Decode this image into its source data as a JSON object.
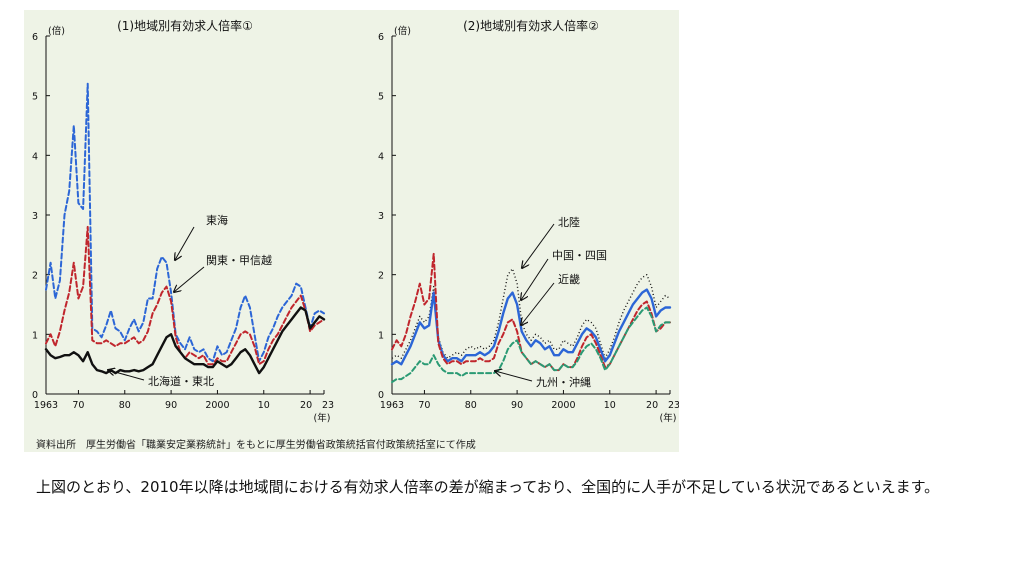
{
  "figure": {
    "source_note": "資料出所　厚生労働省「職業安定業務統計」をもとに厚生労働省政策統括官付政策統括室にて作成"
  },
  "caption": "上図のとおり、2010年以降は地域間における有効求人倍率の差が縮まっており、全国的に人手が不足している状況であるといえます。",
  "chart_data": [
    {
      "type": "line",
      "title": "(1)地域別有効求人倍率①",
      "y_unit": "(倍)",
      "x_unit": "(年)",
      "xlim": [
        1963,
        2023
      ],
      "ylim": [
        0,
        6
      ],
      "x_ticks": [
        "1963",
        "70",
        "80",
        "90",
        "2000",
        "10",
        "20",
        "23"
      ],
      "y_ticks": [
        "0",
        "1",
        "2",
        "3",
        "4",
        "5",
        "6"
      ],
      "grid": false,
      "series": [
        {
          "name": "東海",
          "color": "#2c66d6",
          "style": "dashed",
          "x": [
            1963,
            1964,
            1965,
            1966,
            1967,
            1968,
            1969,
            1970,
            1971,
            1972,
            1973,
            1974,
            1975,
            1976,
            1977,
            1978,
            1979,
            1980,
            1981,
            1982,
            1983,
            1984,
            1985,
            1986,
            1987,
            1988,
            1989,
            1990,
            1991,
            1992,
            1993,
            1994,
            1995,
            1996,
            1997,
            1998,
            1999,
            2000,
            2001,
            2002,
            2003,
            2004,
            2005,
            2006,
            2007,
            2008,
            2009,
            2010,
            2011,
            2012,
            2013,
            2014,
            2015,
            2016,
            2017,
            2018,
            2019,
            2020,
            2021,
            2022,
            2023
          ],
          "values": [
            1.75,
            2.2,
            1.6,
            1.9,
            3.0,
            3.4,
            4.5,
            3.2,
            3.1,
            5.2,
            1.1,
            1.05,
            0.95,
            1.15,
            1.4,
            1.1,
            1.05,
            0.9,
            1.1,
            1.25,
            1.05,
            1.2,
            1.6,
            1.6,
            2.1,
            2.3,
            2.2,
            1.7,
            1.0,
            0.85,
            0.75,
            0.95,
            0.75,
            0.7,
            0.75,
            0.6,
            0.55,
            0.8,
            0.65,
            0.7,
            0.9,
            1.1,
            1.45,
            1.65,
            1.45,
            1.0,
            0.55,
            0.7,
            0.95,
            1.1,
            1.3,
            1.45,
            1.55,
            1.65,
            1.85,
            1.8,
            1.45,
            1.1,
            1.35,
            1.4,
            1.35
          ]
        },
        {
          "name": "関東・甲信越",
          "color": "#c0262d",
          "style": "dashed",
          "x": [
            1963,
            1964,
            1965,
            1966,
            1967,
            1968,
            1969,
            1970,
            1971,
            1972,
            1973,
            1974,
            1975,
            1976,
            1977,
            1978,
            1979,
            1980,
            1981,
            1982,
            1983,
            1984,
            1985,
            1986,
            1987,
            1988,
            1989,
            1990,
            1991,
            1992,
            1993,
            1994,
            1995,
            1996,
            1997,
            1998,
            1999,
            2000,
            2001,
            2002,
            2003,
            2004,
            2005,
            2006,
            2007,
            2008,
            2009,
            2010,
            2011,
            2012,
            2013,
            2014,
            2015,
            2016,
            2017,
            2018,
            2019,
            2020,
            2021,
            2022,
            2023
          ],
          "values": [
            0.85,
            1.0,
            0.8,
            1.05,
            1.4,
            1.7,
            2.2,
            1.6,
            1.8,
            2.8,
            0.9,
            0.85,
            0.85,
            0.9,
            0.85,
            0.8,
            0.85,
            0.85,
            0.9,
            0.95,
            0.85,
            0.9,
            1.05,
            1.35,
            1.5,
            1.7,
            1.8,
            1.55,
            0.95,
            0.7,
            0.6,
            0.7,
            0.65,
            0.6,
            0.65,
            0.5,
            0.5,
            0.6,
            0.55,
            0.55,
            0.7,
            0.85,
            1.0,
            1.05,
            1.0,
            0.8,
            0.5,
            0.55,
            0.75,
            0.9,
            1.0,
            1.15,
            1.3,
            1.45,
            1.55,
            1.65,
            1.4,
            1.05,
            1.15,
            1.2,
            1.25
          ]
        },
        {
          "name": "北海道・東北",
          "color": "#111111",
          "style": "solid",
          "x": [
            1963,
            1964,
            1965,
            1966,
            1967,
            1968,
            1969,
            1970,
            1971,
            1972,
            1973,
            1974,
            1975,
            1976,
            1977,
            1978,
            1979,
            1980,
            1981,
            1982,
            1983,
            1984,
            1985,
            1986,
            1987,
            1988,
            1989,
            1990,
            1991,
            1992,
            1993,
            1994,
            1995,
            1996,
            1997,
            1998,
            1999,
            2000,
            2001,
            2002,
            2003,
            2004,
            2005,
            2006,
            2007,
            2008,
            2009,
            2010,
            2011,
            2012,
            2013,
            2014,
            2015,
            2016,
            2017,
            2018,
            2019,
            2020,
            2021,
            2022,
            2023
          ],
          "values": [
            0.75,
            0.65,
            0.6,
            0.62,
            0.65,
            0.65,
            0.7,
            0.65,
            0.55,
            0.7,
            0.5,
            0.4,
            0.38,
            0.35,
            0.4,
            0.35,
            0.4,
            0.38,
            0.38,
            0.4,
            0.38,
            0.4,
            0.45,
            0.5,
            0.65,
            0.8,
            0.95,
            1.0,
            0.8,
            0.7,
            0.6,
            0.55,
            0.5,
            0.5,
            0.5,
            0.45,
            0.45,
            0.55,
            0.5,
            0.45,
            0.5,
            0.6,
            0.7,
            0.75,
            0.65,
            0.5,
            0.35,
            0.45,
            0.6,
            0.75,
            0.9,
            1.05,
            1.15,
            1.25,
            1.35,
            1.45,
            1.4,
            1.1,
            1.2,
            1.3,
            1.25
          ]
        }
      ],
      "annotations": [
        "東海",
        "関東・甲信越",
        "北海道・東北"
      ]
    },
    {
      "type": "line",
      "title": "(2)地域別有効求人倍率②",
      "y_unit": "(倍)",
      "x_unit": "(年)",
      "xlim": [
        1963,
        2023
      ],
      "ylim": [
        0,
        6
      ],
      "x_ticks": [
        "1963",
        "70",
        "80",
        "90",
        "2000",
        "10",
        "20",
        "23"
      ],
      "y_ticks": [
        "0",
        "1",
        "2",
        "3",
        "4",
        "5",
        "6"
      ],
      "grid": false,
      "series": [
        {
          "name": "北陸",
          "color": "#111111",
          "style": "dotted",
          "x": [
            1963,
            1964,
            1965,
            1966,
            1967,
            1968,
            1969,
            1970,
            1971,
            1972,
            1973,
            1974,
            1975,
            1976,
            1977,
            1978,
            1979,
            1980,
            1981,
            1982,
            1983,
            1984,
            1985,
            1986,
            1987,
            1988,
            1989,
            1990,
            1991,
            1992,
            1993,
            1994,
            1995,
            1996,
            1997,
            1998,
            1999,
            2000,
            2001,
            2002,
            2003,
            2004,
            2005,
            2006,
            2007,
            2008,
            2009,
            2010,
            2011,
            2012,
            2013,
            2014,
            2015,
            2016,
            2017,
            2018,
            2019,
            2020,
            2021,
            2022,
            2023
          ],
          "values": [
            0.6,
            0.65,
            0.6,
            0.75,
            0.9,
            1.1,
            1.3,
            1.2,
            1.3,
            1.8,
            0.95,
            0.7,
            0.6,
            0.65,
            0.7,
            0.65,
            0.75,
            0.8,
            0.75,
            0.8,
            0.75,
            0.8,
            0.9,
            1.2,
            1.6,
            2.0,
            2.1,
            1.85,
            1.2,
            1.0,
            0.9,
            1.0,
            0.95,
            0.85,
            0.9,
            0.75,
            0.75,
            0.9,
            0.85,
            0.8,
            0.95,
            1.15,
            1.25,
            1.2,
            1.1,
            0.85,
            0.6,
            0.75,
            0.95,
            1.2,
            1.4,
            1.55,
            1.7,
            1.85,
            1.95,
            2.0,
            1.8,
            1.45,
            1.55,
            1.65,
            1.6
          ]
        },
        {
          "name": "中国・四国",
          "color": "#2c66d6",
          "style": "solid",
          "x": [
            1963,
            1964,
            1965,
            1966,
            1967,
            1968,
            1969,
            1970,
            1971,
            1972,
            1973,
            1974,
            1975,
            1976,
            1977,
            1978,
            1979,
            1980,
            1981,
            1982,
            1983,
            1984,
            1985,
            1986,
            1987,
            1988,
            1989,
            1990,
            1991,
            1992,
            1993,
            1994,
            1995,
            1996,
            1997,
            1998,
            1999,
            2000,
            2001,
            2002,
            2003,
            2004,
            2005,
            2006,
            2007,
            2008,
            2009,
            2010,
            2011,
            2012,
            2013,
            2014,
            2015,
            2016,
            2017,
            2018,
            2019,
            2020,
            2021,
            2022,
            2023
          ],
          "values": [
            0.5,
            0.55,
            0.5,
            0.65,
            0.8,
            1.0,
            1.2,
            1.1,
            1.15,
            1.7,
            0.9,
            0.65,
            0.55,
            0.6,
            0.6,
            0.55,
            0.65,
            0.65,
            0.65,
            0.7,
            0.65,
            0.7,
            0.8,
            1.05,
            1.35,
            1.6,
            1.7,
            1.5,
            1.05,
            0.9,
            0.8,
            0.9,
            0.85,
            0.75,
            0.8,
            0.65,
            0.65,
            0.75,
            0.7,
            0.7,
            0.85,
            1.0,
            1.1,
            1.05,
            0.95,
            0.75,
            0.55,
            0.65,
            0.85,
            1.05,
            1.2,
            1.35,
            1.5,
            1.6,
            1.7,
            1.75,
            1.6,
            1.3,
            1.4,
            1.45,
            1.45
          ]
        },
        {
          "name": "近畿",
          "color": "#c0262d",
          "style": "dashed",
          "x": [
            1963,
            1964,
            1965,
            1966,
            1967,
            1968,
            1969,
            1970,
            1971,
            1972,
            1973,
            1974,
            1975,
            1976,
            1977,
            1978,
            1979,
            1980,
            1981,
            1982,
            1983,
            1984,
            1985,
            1986,
            1987,
            1988,
            1989,
            1990,
            1991,
            1992,
            1993,
            1994,
            1995,
            1996,
            1997,
            1998,
            1999,
            2000,
            2001,
            2002,
            2003,
            2004,
            2005,
            2006,
            2007,
            2008,
            2009,
            2010,
            2011,
            2012,
            2013,
            2014,
            2015,
            2016,
            2017,
            2018,
            2019,
            2020,
            2021,
            2022,
            2023
          ],
          "values": [
            0.75,
            0.9,
            0.8,
            1.0,
            1.3,
            1.55,
            1.85,
            1.5,
            1.6,
            2.35,
            0.85,
            0.6,
            0.5,
            0.55,
            0.55,
            0.5,
            0.55,
            0.55,
            0.55,
            0.6,
            0.55,
            0.55,
            0.6,
            0.85,
            1.0,
            1.2,
            1.25,
            1.05,
            0.7,
            0.6,
            0.5,
            0.55,
            0.5,
            0.45,
            0.5,
            0.4,
            0.4,
            0.5,
            0.45,
            0.45,
            0.6,
            0.8,
            0.95,
            1.0,
            0.85,
            0.65,
            0.45,
            0.5,
            0.65,
            0.8,
            0.95,
            1.1,
            1.25,
            1.4,
            1.5,
            1.55,
            1.35,
            1.05,
            1.1,
            1.2,
            1.2
          ]
        },
        {
          "name": "九州・沖縄",
          "color": "#2a9a74",
          "style": "dashed",
          "x": [
            1963,
            1964,
            1965,
            1966,
            1967,
            1968,
            1969,
            1970,
            1971,
            1972,
            1973,
            1974,
            1975,
            1976,
            1977,
            1978,
            1979,
            1980,
            1981,
            1982,
            1983,
            1984,
            1985,
            1986,
            1987,
            1988,
            1989,
            1990,
            1991,
            1992,
            1993,
            1994,
            1995,
            1996,
            1997,
            1998,
            1999,
            2000,
            2001,
            2002,
            2003,
            2004,
            2005,
            2006,
            2007,
            2008,
            2009,
            2010,
            2011,
            2012,
            2013,
            2014,
            2015,
            2016,
            2017,
            2018,
            2019,
            2020,
            2021,
            2022,
            2023
          ],
          "values": [
            0.2,
            0.25,
            0.25,
            0.3,
            0.35,
            0.45,
            0.55,
            0.5,
            0.5,
            0.65,
            0.5,
            0.4,
            0.35,
            0.35,
            0.35,
            0.3,
            0.35,
            0.35,
            0.35,
            0.35,
            0.35,
            0.35,
            0.35,
            0.4,
            0.55,
            0.75,
            0.85,
            0.9,
            0.7,
            0.6,
            0.5,
            0.55,
            0.5,
            0.45,
            0.5,
            0.4,
            0.4,
            0.5,
            0.45,
            0.45,
            0.55,
            0.7,
            0.8,
            0.85,
            0.75,
            0.6,
            0.4,
            0.5,
            0.65,
            0.8,
            0.95,
            1.1,
            1.2,
            1.3,
            1.4,
            1.45,
            1.3,
            1.05,
            1.15,
            1.2,
            1.2
          ]
        }
      ],
      "annotations": [
        "北陸",
        "中国・四国",
        "近畿",
        "九州・沖縄"
      ]
    }
  ]
}
